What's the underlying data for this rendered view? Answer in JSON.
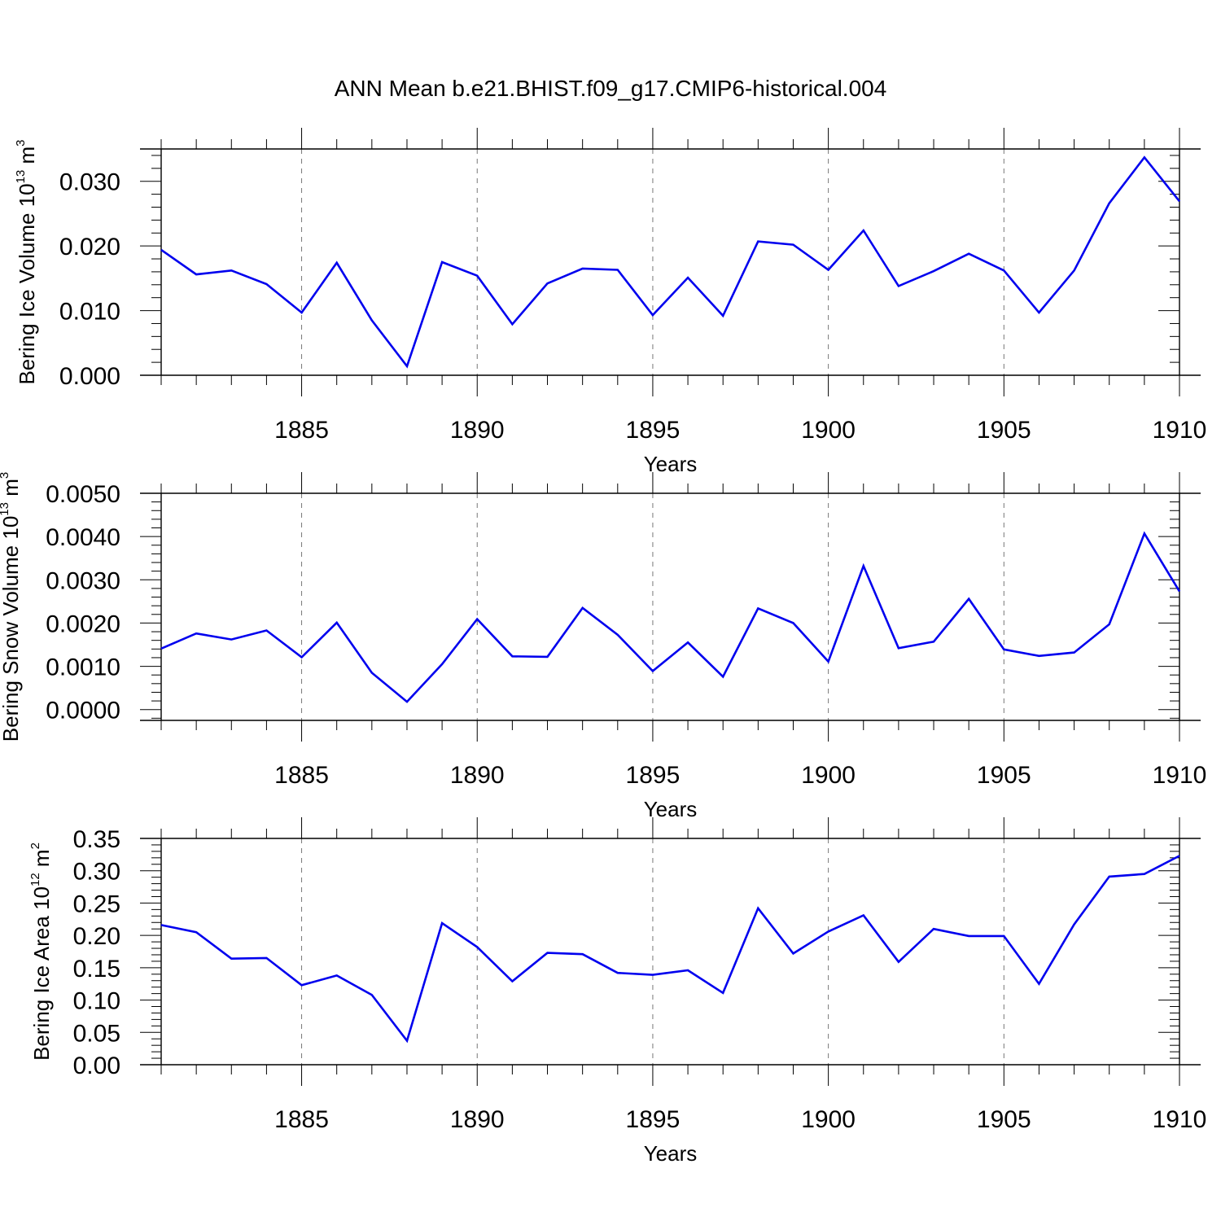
{
  "figure": {
    "title": "ANN Mean b.e21.BHIST.f09_g17.CMIP6-historical.004"
  },
  "line_color": "#0000ee",
  "chart_data": [
    {
      "type": "line",
      "xlabel": "Years",
      "ylabel_base": "Bering Ice Volume 10",
      "ylabel_exp": "13",
      "ylabel_unit": "m",
      "ylabel_unit_exp": "3",
      "xlim": [
        1881,
        1910
      ],
      "ylim": [
        0,
        0.035
      ],
      "xticks": [
        1885,
        1890,
        1895,
        1900,
        1905,
        1910
      ],
      "xtick_labels": [
        "1885",
        "1890",
        "1895",
        "1900",
        "1905",
        "1910"
      ],
      "yticks": [
        0,
        0.01,
        0.02,
        0.03
      ],
      "ytick_labels": [
        "0.000",
        "0.010",
        "0.020",
        "0.030"
      ],
      "yminor_step": 0.002,
      "grid": "dashed vertical at major x ticks",
      "x": [
        1881,
        1882,
        1883,
        1884,
        1885,
        1886,
        1887,
        1888,
        1889,
        1890,
        1891,
        1892,
        1893,
        1894,
        1895,
        1896,
        1897,
        1898,
        1899,
        1900,
        1901,
        1902,
        1903,
        1904,
        1905,
        1906,
        1907,
        1908,
        1909,
        1910
      ],
      "values": [
        0.0194,
        0.0156,
        0.0162,
        0.0141,
        0.0097,
        0.0174,
        0.0085,
        0.0014,
        0.0175,
        0.0154,
        0.0079,
        0.0142,
        0.0165,
        0.0163,
        0.0093,
        0.0151,
        0.0092,
        0.0207,
        0.0202,
        0.0163,
        0.0224,
        0.0138,
        0.0161,
        0.0188,
        0.0162,
        0.0097,
        0.0162,
        0.0266,
        0.0337,
        0.0269
      ]
    },
    {
      "type": "line",
      "xlabel": "Years",
      "ylabel_base": "Bering Snow Volume 10",
      "ylabel_exp": "13",
      "ylabel_unit": "m",
      "ylabel_unit_exp": "3",
      "xlim": [
        1881,
        1910
      ],
      "ylim": [
        -0.00025,
        0.005
      ],
      "xticks": [
        1885,
        1890,
        1895,
        1900,
        1905,
        1910
      ],
      "xtick_labels": [
        "1885",
        "1890",
        "1895",
        "1900",
        "1905",
        "1910"
      ],
      "yticks": [
        0,
        0.001,
        0.002,
        0.003,
        0.004,
        0.005
      ],
      "ytick_labels": [
        "0.0000",
        "0.0010",
        "0.0020",
        "0.0030",
        "0.0040",
        "0.0050"
      ],
      "yminor_step": 0.0002,
      "grid": "dashed vertical at major x ticks",
      "x": [
        1881,
        1882,
        1883,
        1884,
        1885,
        1886,
        1887,
        1888,
        1889,
        1890,
        1891,
        1892,
        1893,
        1894,
        1895,
        1896,
        1897,
        1898,
        1899,
        1900,
        1901,
        1902,
        1903,
        1904,
        1905,
        1906,
        1907,
        1908,
        1909,
        1910
      ],
      "values": [
        0.00141,
        0.00176,
        0.00162,
        0.00183,
        0.00121,
        0.00201,
        0.00085,
        0.00018,
        0.00105,
        0.00209,
        0.00123,
        0.00122,
        0.00235,
        0.00173,
        0.00089,
        0.00155,
        0.00076,
        0.00234,
        0.002,
        0.00111,
        0.00332,
        0.00142,
        0.00157,
        0.00256,
        0.00139,
        0.00124,
        0.00132,
        0.00197,
        0.00407,
        0.00273
      ]
    },
    {
      "type": "line",
      "xlabel": "Years",
      "ylabel_base": "Bering Ice Area 10",
      "ylabel_exp": "12",
      "ylabel_unit": "m",
      "ylabel_unit_exp": "2",
      "xlim": [
        1881,
        1910
      ],
      "ylim": [
        0,
        0.35
      ],
      "xticks": [
        1885,
        1890,
        1895,
        1900,
        1905,
        1910
      ],
      "xtick_labels": [
        "1885",
        "1890",
        "1895",
        "1900",
        "1905",
        "1910"
      ],
      "yticks": [
        0,
        0.05,
        0.1,
        0.15,
        0.2,
        0.25,
        0.3,
        0.35
      ],
      "ytick_labels": [
        "0.00",
        "0.05",
        "0.10",
        "0.15",
        "0.20",
        "0.25",
        "0.30",
        "0.35"
      ],
      "yminor_step": 0.01,
      "grid": "dashed vertical at major x ticks",
      "x": [
        1881,
        1882,
        1883,
        1884,
        1885,
        1886,
        1887,
        1888,
        1889,
        1890,
        1891,
        1892,
        1893,
        1894,
        1895,
        1896,
        1897,
        1898,
        1899,
        1900,
        1901,
        1902,
        1903,
        1904,
        1905,
        1906,
        1907,
        1908,
        1909,
        1910
      ],
      "values": [
        0.216,
        0.205,
        0.164,
        0.165,
        0.123,
        0.138,
        0.108,
        0.037,
        0.219,
        0.182,
        0.129,
        0.173,
        0.171,
        0.142,
        0.139,
        0.146,
        0.111,
        0.242,
        0.172,
        0.206,
        0.231,
        0.159,
        0.21,
        0.199,
        0.199,
        0.125,
        0.217,
        0.291,
        0.295,
        0.323
      ]
    }
  ]
}
